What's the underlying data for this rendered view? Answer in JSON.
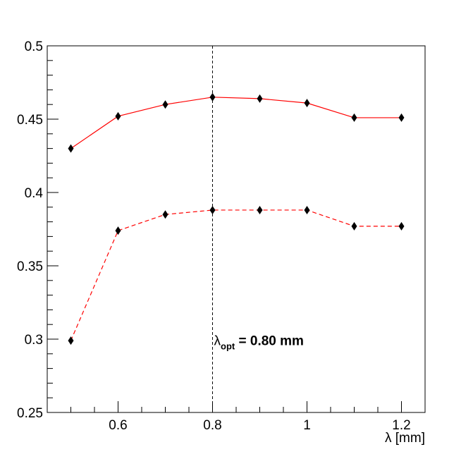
{
  "chart_data": {
    "type": "line",
    "title": "",
    "xlabel": "λ [mm]",
    "ylabel": "",
    "xlim": [
      0.45,
      1.25
    ],
    "ylim": [
      0.25,
      0.5
    ],
    "x_ticks": [
      0.6,
      0.8,
      1.0,
      1.2
    ],
    "x_tick_labels": [
      "0.6",
      "0.8",
      "1",
      "1.2"
    ],
    "y_ticks": [
      0.25,
      0.3,
      0.35,
      0.4,
      0.45,
      0.5
    ],
    "y_tick_labels": [
      "0.25",
      "0.3",
      "0.35",
      "0.4",
      "0.45",
      "0.5"
    ],
    "grid": false,
    "legend": "none",
    "x": [
      0.5,
      0.6,
      0.7,
      0.8,
      0.9,
      1.0,
      1.1,
      1.2
    ],
    "series": [
      {
        "values": [
          0.43,
          0.452,
          0.46,
          0.465,
          0.464,
          0.461,
          0.451,
          0.451
        ],
        "color": "#ff0000",
        "line_style": "solid",
        "marker": "diamond"
      },
      {
        "values": [
          0.299,
          0.374,
          0.385,
          0.388,
          0.388,
          0.388,
          0.377,
          0.377
        ],
        "color": "#ff0000",
        "line_style": "dashed",
        "marker": "diamond"
      }
    ],
    "vline": {
      "x": 0.8,
      "style": "dashed",
      "color": "#000000"
    },
    "annotation": {
      "symbol": "λ",
      "subscript": "opt",
      "value": " = 0.80 mm",
      "x": 0.8,
      "y": 0.296
    }
  }
}
